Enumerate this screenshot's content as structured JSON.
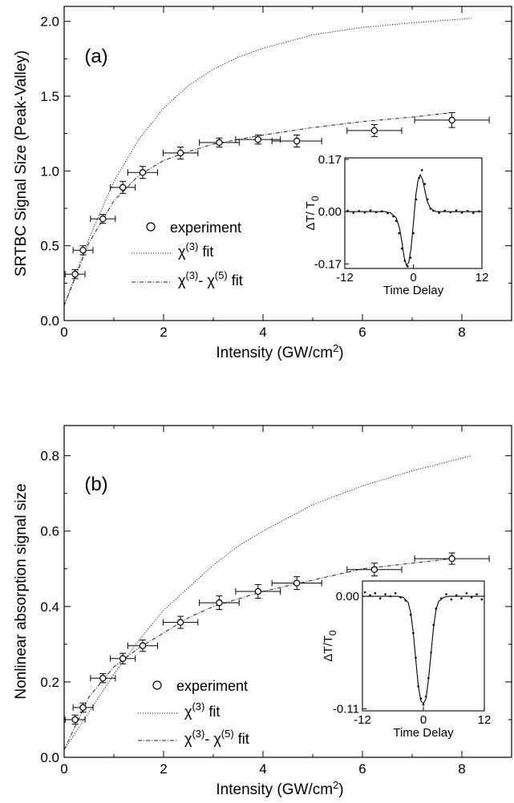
{
  "chart_data": [
    {
      "type": "scatter",
      "panel_label": "(a)",
      "xlabel": "Intensity (GW/cm",
      "xlabel_sup": "2",
      "xlabel_end": ")",
      "ylabel": "SRTBC Signal Size (Peak-Valley)",
      "xlim": [
        0,
        9
      ],
      "ylim": [
        0,
        2.1
      ],
      "x_ticks": [
        "0",
        "2",
        "4",
        "6",
        "8"
      ],
      "y_ticks": [
        "0.0",
        "0.5",
        "1.0",
        "1.5",
        "2.0"
      ],
      "legend": {
        "experiment": "experiment",
        "chi3_fit": "fit",
        "chi35_fit": "fit"
      },
      "series": [
        {
          "name": "experiment",
          "points": [
            {
              "x": 0.22,
              "y": 0.31,
              "xerr": 0.2,
              "yerr": 0.03
            },
            {
              "x": 0.38,
              "y": 0.47,
              "xerr": 0.2,
              "yerr": 0.03
            },
            {
              "x": 0.78,
              "y": 0.68,
              "xerr": 0.25,
              "yerr": 0.03
            },
            {
              "x": 1.18,
              "y": 0.89,
              "xerr": 0.25,
              "yerr": 0.04
            },
            {
              "x": 1.58,
              "y": 0.99,
              "xerr": 0.3,
              "yerr": 0.04
            },
            {
              "x": 2.34,
              "y": 1.12,
              "xerr": 0.35,
              "yerr": 0.04
            },
            {
              "x": 3.12,
              "y": 1.19,
              "xerr": 0.4,
              "yerr": 0.03
            },
            {
              "x": 3.9,
              "y": 1.21,
              "xerr": 0.45,
              "yerr": 0.03
            },
            {
              "x": 4.68,
              "y": 1.2,
              "xerr": 0.5,
              "yerr": 0.04
            },
            {
              "x": 6.24,
              "y": 1.27,
              "xerr": 0.55,
              "yerr": 0.04
            },
            {
              "x": 7.8,
              "y": 1.34,
              "xerr": 0.75,
              "yerr": 0.05
            }
          ]
        },
        {
          "name": "χ(3) fit",
          "x": [
            0,
            0.5,
            1,
            1.5,
            2,
            2.5,
            3,
            3.5,
            4,
            5,
            6,
            7,
            8.2
          ],
          "y": [
            0.1,
            0.55,
            0.93,
            1.21,
            1.42,
            1.57,
            1.68,
            1.76,
            1.82,
            1.91,
            1.96,
            1.99,
            2.02
          ]
        },
        {
          "name": "χ(3)- χ(5) fit",
          "x": [
            0,
            0.5,
            1,
            1.5,
            2,
            2.5,
            3,
            3.5,
            4,
            5,
            6,
            7,
            7.8
          ],
          "y": [
            0.1,
            0.52,
            0.8,
            0.97,
            1.07,
            1.13,
            1.18,
            1.21,
            1.24,
            1.29,
            1.33,
            1.36,
            1.39
          ]
        }
      ],
      "inset": {
        "xlabel": "Time Delay",
        "ylabel": "ΔT/ T",
        "ylabel_sub": "0",
        "xlim": [
          -12,
          12
        ],
        "ylim": [
          -0.185,
          0.175
        ],
        "x_ticks": [
          "-12",
          "0",
          "12"
        ],
        "y_ticks": [
          "0.17",
          "0.00",
          "-0.17"
        ],
        "fit": {
          "x": [
            -12,
            -5,
            -4,
            -3,
            -2.4,
            -2,
            -1.6,
            -1.2,
            -0.8,
            -0.4,
            0,
            0.4,
            0.8,
            1.2,
            1.6,
            2,
            2.4,
            3,
            4,
            5,
            12
          ],
          "y": [
            0,
            0,
            -0.004,
            -0.02,
            -0.055,
            -0.1,
            -0.15,
            -0.175,
            -0.165,
            -0.12,
            -0.04,
            0.05,
            0.1,
            0.12,
            0.105,
            0.07,
            0.035,
            0.01,
            0,
            0,
            0
          ]
        },
        "data": {
          "x": [
            -11.5,
            -10.5,
            -9.5,
            -8.5,
            -7.5,
            -6.5,
            -5.5,
            -4.5,
            -3.5,
            -3,
            -2.5,
            -2,
            -1.5,
            -1,
            -0.5,
            0,
            0.5,
            1,
            1.5,
            2,
            2.5,
            3,
            3.5,
            4.5,
            5.5,
            6.5,
            7.5,
            8.5,
            9.5,
            10.5,
            11.5
          ],
          "y": [
            0.003,
            -0.004,
            0.002,
            -0.003,
            0.004,
            -0.002,
            0.001,
            -0.005,
            -0.015,
            -0.03,
            -0.07,
            -0.12,
            -0.16,
            -0.178,
            -0.15,
            -0.07,
            0.04,
            0.11,
            0.135,
            0.09,
            0.04,
            0.01,
            0.003,
            -0.004,
            0.003,
            -0.002,
            0.004,
            -0.003,
            0.002,
            -0.004,
            0.001
          ]
        }
      }
    },
    {
      "type": "scatter",
      "panel_label": "(b)",
      "xlabel": "Intensity (GW/cm",
      "xlabel_sup": "2",
      "xlabel_end": ")",
      "ylabel": "Nonlinear absorption signal size",
      "xlim": [
        0,
        9
      ],
      "ylim": [
        0,
        0.88
      ],
      "x_ticks": [
        "0",
        "2",
        "4",
        "6",
        "8"
      ],
      "y_ticks": [
        "0.0",
        "0.2",
        "0.4",
        "0.6",
        "0.8"
      ],
      "legend": {
        "experiment": "experiment",
        "chi3_fit": "fit",
        "chi35_fit": "fit"
      },
      "series": [
        {
          "name": "experiment",
          "points": [
            {
              "x": 0.22,
              "y": 0.1,
              "xerr": 0.2,
              "yerr": 0.012
            },
            {
              "x": 0.38,
              "y": 0.132,
              "xerr": 0.2,
              "yerr": 0.012
            },
            {
              "x": 0.78,
              "y": 0.21,
              "xerr": 0.25,
              "yerr": 0.012
            },
            {
              "x": 1.18,
              "y": 0.262,
              "xerr": 0.25,
              "yerr": 0.014
            },
            {
              "x": 1.58,
              "y": 0.296,
              "xerr": 0.3,
              "yerr": 0.015
            },
            {
              "x": 2.34,
              "y": 0.358,
              "xerr": 0.35,
              "yerr": 0.016
            },
            {
              "x": 3.12,
              "y": 0.41,
              "xerr": 0.4,
              "yerr": 0.018
            },
            {
              "x": 3.9,
              "y": 0.44,
              "xerr": 0.45,
              "yerr": 0.018
            },
            {
              "x": 4.68,
              "y": 0.462,
              "xerr": 0.5,
              "yerr": 0.017
            },
            {
              "x": 6.24,
              "y": 0.498,
              "xerr": 0.55,
              "yerr": 0.017
            },
            {
              "x": 7.8,
              "y": 0.527,
              "xerr": 0.75,
              "yerr": 0.015
            }
          ]
        },
        {
          "name": "χ(3) fit",
          "x": [
            0,
            0.5,
            1,
            1.5,
            2,
            2.5,
            3,
            3.5,
            4,
            5,
            6,
            7,
            8.2
          ],
          "y": [
            0.02,
            0.12,
            0.22,
            0.31,
            0.39,
            0.45,
            0.51,
            0.56,
            0.6,
            0.67,
            0.72,
            0.76,
            0.8
          ]
        },
        {
          "name": "χ(3)- χ(5) fit",
          "x": [
            0,
            0.5,
            1,
            1.5,
            2,
            2.5,
            3,
            3.5,
            4,
            5,
            6,
            7,
            7.8
          ],
          "y": [
            0.02,
            0.16,
            0.24,
            0.29,
            0.33,
            0.37,
            0.4,
            0.42,
            0.44,
            0.47,
            0.5,
            0.515,
            0.527
          ]
        }
      ],
      "inset": {
        "xlabel": "Time Delay",
        "ylabel": "ΔT/T",
        "ylabel_sub": "0",
        "xlim": [
          -12,
          12
        ],
        "ylim": [
          -0.112,
          0.015
        ],
        "x_ticks": [
          "-12",
          "0",
          "12"
        ],
        "y_ticks": [
          "0.00",
          "-0.11"
        ],
        "fit": {
          "x": [
            -12,
            -5,
            -4,
            -3,
            -2.5,
            -2,
            -1.5,
            -1,
            -0.5,
            0,
            0.5,
            1,
            1.5,
            2,
            2.5,
            3,
            4,
            5,
            12
          ],
          "y": [
            0,
            0,
            -0.001,
            -0.006,
            -0.016,
            -0.035,
            -0.062,
            -0.088,
            -0.102,
            -0.105,
            -0.1,
            -0.082,
            -0.056,
            -0.03,
            -0.013,
            -0.005,
            -0.001,
            0,
            0
          ]
        },
        "data": {
          "x": [
            -11.5,
            -10.5,
            -9.5,
            -8.5,
            -7.5,
            -6.5,
            -5.5,
            -4.5,
            -3.5,
            -2.5,
            -2,
            -1.5,
            -1,
            -0.5,
            0,
            0.5,
            1,
            1.5,
            2,
            2.5,
            3.5,
            4.5,
            5.5,
            6.5,
            7.5,
            8.5,
            9.5,
            10.5,
            11.5
          ],
          "y": [
            0.004,
            0.001,
            0.003,
            -0.002,
            0.002,
            0,
            0.003,
            -0.001,
            -0.004,
            -0.018,
            -0.036,
            -0.06,
            -0.088,
            -0.1,
            -0.106,
            -0.098,
            -0.08,
            -0.055,
            -0.028,
            -0.012,
            -0.002,
            0.002,
            -0.003,
            0.001,
            -0.002,
            0.003,
            -0.001,
            0.002,
            -0.003
          ]
        }
      }
    }
  ]
}
